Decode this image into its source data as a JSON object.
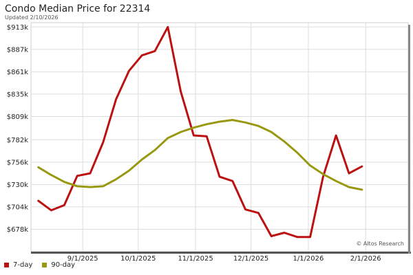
{
  "chart_data": {
    "type": "line",
    "title": "Condo Median Price for 22314",
    "subtitle": "Updated 2/10/2026",
    "credit": "© Altos Research",
    "xlabel": "",
    "ylabel": "",
    "x_ticks": [
      "9/1/2025",
      "10/1/2025",
      "11/1/2025",
      "12/1/2025",
      "1/1/2026",
      "2/1/2026"
    ],
    "x_tick_dates": [
      "2025-09-01",
      "2025-10-01",
      "2025-11-01",
      "2025-12-01",
      "2026-01-01",
      "2026-02-01"
    ],
    "y_ticks": [
      "$678k",
      "$704k",
      "$730k",
      "$756k",
      "$782k",
      "$809k",
      "$835k",
      "$861k",
      "$887k",
      "$913k"
    ],
    "y_tick_values": [
      678,
      704,
      730,
      756,
      782,
      809,
      835,
      861,
      887,
      913
    ],
    "ylim": [
      652,
      918
    ],
    "xlim": [
      "2025-08-04",
      "2026-02-24"
    ],
    "grid": true,
    "legend": "bottom-left",
    "x": [
      "2025-08-08",
      "2025-08-15",
      "2025-08-22",
      "2025-08-29",
      "2025-09-05",
      "2025-09-12",
      "2025-09-19",
      "2025-09-26",
      "2025-10-03",
      "2025-10-10",
      "2025-10-17",
      "2025-10-24",
      "2025-10-31",
      "2025-11-07",
      "2025-11-14",
      "2025-11-21",
      "2025-11-28",
      "2025-12-05",
      "2025-12-12",
      "2025-12-19",
      "2025-12-26",
      "2026-01-02",
      "2026-01-09",
      "2026-01-16",
      "2026-01-23",
      "2026-01-30",
      "2026-02-06"
    ],
    "series": [
      {
        "name": "7-day",
        "color": "#bb1111",
        "values": [
          711,
          700,
          706,
          740,
          743,
          779,
          829,
          862,
          880,
          885,
          913,
          838,
          787,
          786,
          739,
          734,
          701,
          697,
          670,
          674,
          669,
          669,
          739,
          787,
          743,
          751,
          null
        ]
      },
      {
        "name": "90-day",
        "color": "#999911",
        "values": [
          750,
          741,
          733,
          728,
          727,
          728,
          736,
          746,
          759,
          770,
          784,
          791,
          796,
          800,
          803,
          805,
          802,
          798,
          791,
          780,
          767,
          752,
          742,
          734,
          727,
          724,
          null
        ]
      }
    ]
  }
}
